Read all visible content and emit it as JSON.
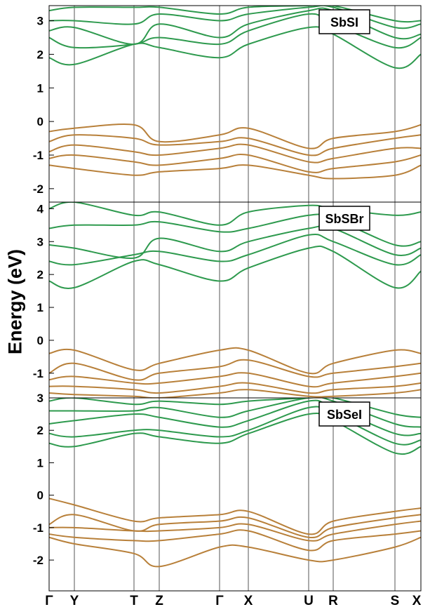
{
  "figure": {
    "ylabel": "Energy (eV)",
    "kpoints": [
      "Γ",
      "Y",
      "T",
      "Z",
      "Γ",
      "X",
      "U",
      "R",
      "S",
      "X"
    ],
    "colors": {
      "conduction": "#2e9a4e",
      "valence": "#b8803a",
      "axis": "#000000",
      "divider": "#555555"
    }
  },
  "chart_data": [
    {
      "type": "line",
      "title": "SbSI",
      "ylim": [
        -2.4,
        3.45
      ],
      "yticks": [
        3,
        2,
        1,
        0,
        -1,
        -2
      ],
      "x": [
        "Γ",
        "Y",
        "T",
        "Z",
        "Γ",
        "X",
        "U",
        "R",
        "S",
        "X"
      ],
      "series": [
        {
          "band": "conduction",
          "values": [
            1.9,
            1.7,
            2.3,
            2.2,
            1.9,
            2.3,
            2.8,
            2.6,
            1.6,
            2.0
          ]
        },
        {
          "band": "conduction",
          "values": [
            2.5,
            2.2,
            2.3,
            2.5,
            2.3,
            2.7,
            3.2,
            2.9,
            2.2,
            2.5
          ]
        },
        {
          "band": "conduction",
          "values": [
            2.7,
            2.8,
            2.3,
            2.9,
            2.5,
            2.9,
            3.3,
            3.3,
            2.5,
            2.6
          ]
        },
        {
          "band": "conduction",
          "values": [
            3.0,
            3.0,
            2.9,
            3.2,
            3.0,
            3.2,
            3.4,
            3.4,
            2.8,
            2.9
          ]
        },
        {
          "band": "conduction",
          "values": [
            3.3,
            3.4,
            3.4,
            3.4,
            3.2,
            3.4,
            3.45,
            3.45,
            3.0,
            3.0
          ]
        },
        {
          "band": "valence",
          "values": [
            -0.3,
            -0.2,
            -0.1,
            -0.6,
            -0.4,
            -0.2,
            -0.8,
            -0.5,
            -0.3,
            -0.1
          ]
        },
        {
          "band": "valence",
          "values": [
            -0.6,
            -0.4,
            -0.5,
            -0.7,
            -0.6,
            -0.5,
            -1.0,
            -0.8,
            -0.5,
            -0.4
          ]
        },
        {
          "band": "valence",
          "values": [
            -0.9,
            -0.7,
            -0.9,
            -1.0,
            -0.8,
            -0.7,
            -1.2,
            -1.1,
            -0.8,
            -0.8
          ]
        },
        {
          "band": "valence",
          "values": [
            -1.1,
            -1.0,
            -1.2,
            -1.3,
            -1.1,
            -1.0,
            -1.5,
            -1.4,
            -1.2,
            -1.0
          ]
        },
        {
          "band": "valence",
          "values": [
            -1.3,
            -1.4,
            -1.6,
            -1.5,
            -1.4,
            -1.3,
            -1.6,
            -1.7,
            -1.6,
            -1.3
          ]
        }
      ]
    },
    {
      "type": "line",
      "title": "SbSBr",
      "ylim": [
        -1.75,
        4.2
      ],
      "yticks": [
        4,
        3,
        2,
        1,
        0,
        -1
      ],
      "x": [
        "Γ",
        "Y",
        "T",
        "Z",
        "Γ",
        "X",
        "U",
        "R",
        "S",
        "X"
      ],
      "series": [
        {
          "band": "conduction",
          "values": [
            1.8,
            1.6,
            2.4,
            2.3,
            1.8,
            2.2,
            2.8,
            2.7,
            1.6,
            2.1
          ]
        },
        {
          "band": "conduction",
          "values": [
            2.4,
            2.3,
            2.6,
            2.7,
            2.4,
            2.6,
            3.2,
            3.0,
            2.3,
            2.6
          ]
        },
        {
          "band": "conduction",
          "values": [
            2.9,
            2.8,
            2.5,
            3.1,
            2.7,
            3.0,
            3.4,
            3.4,
            2.6,
            2.8
          ]
        },
        {
          "band": "conduction",
          "values": [
            3.4,
            3.5,
            3.5,
            3.6,
            3.3,
            3.4,
            3.8,
            3.7,
            2.9,
            3.0
          ]
        },
        {
          "band": "conduction",
          "values": [
            4.0,
            4.2,
            3.8,
            3.9,
            3.5,
            3.9,
            4.1,
            4.0,
            3.8,
            3.9
          ]
        },
        {
          "band": "valence",
          "values": [
            -0.4,
            -0.3,
            -0.9,
            -0.7,
            -0.3,
            -0.3,
            -1.0,
            -0.7,
            -0.3,
            -0.4
          ]
        },
        {
          "band": "valence",
          "values": [
            -1.0,
            -0.7,
            -1.2,
            -1.0,
            -0.8,
            -0.6,
            -1.1,
            -1.0,
            -0.8,
            -0.7
          ]
        },
        {
          "band": "valence",
          "values": [
            -1.2,
            -1.1,
            -1.3,
            -1.3,
            -1.1,
            -1.0,
            -1.4,
            -1.3,
            -1.1,
            -1.0
          ]
        },
        {
          "band": "valence",
          "values": [
            -1.4,
            -1.4,
            -1.5,
            -1.6,
            -1.4,
            -1.3,
            -1.6,
            -1.5,
            -1.4,
            -1.3
          ]
        },
        {
          "band": "valence",
          "values": [
            -1.6,
            -1.65,
            -1.7,
            -1.75,
            -1.6,
            -1.5,
            -1.7,
            -1.7,
            -1.6,
            -1.5
          ]
        }
      ]
    },
    {
      "type": "line",
      "title": "SbSeI",
      "ylim": [
        -2.95,
        3.0
      ],
      "yticks": [
        3,
        2,
        1,
        0,
        -1,
        -2
      ],
      "x": [
        "Γ",
        "Y",
        "T",
        "Z",
        "Γ",
        "X",
        "U",
        "R",
        "S",
        "X"
      ],
      "series": [
        {
          "band": "conduction",
          "values": [
            1.6,
            1.5,
            1.9,
            1.8,
            1.6,
            1.9,
            2.5,
            2.3,
            1.3,
            1.5
          ]
        },
        {
          "band": "conduction",
          "values": [
            1.9,
            1.8,
            2.0,
            2.0,
            1.8,
            2.0,
            2.7,
            2.5,
            1.6,
            1.7
          ]
        },
        {
          "band": "conduction",
          "values": [
            2.2,
            2.3,
            2.5,
            2.4,
            2.1,
            2.3,
            2.9,
            2.7,
            1.9,
            1.9
          ]
        },
        {
          "band": "conduction",
          "values": [
            2.6,
            2.6,
            2.6,
            2.7,
            2.4,
            2.6,
            3.0,
            2.9,
            2.2,
            2.1
          ]
        },
        {
          "band": "conduction",
          "values": [
            2.9,
            3.0,
            2.8,
            2.9,
            2.8,
            2.9,
            3.0,
            3.0,
            2.5,
            2.4
          ]
        },
        {
          "band": "valence",
          "values": [
            -0.1,
            -0.3,
            -0.8,
            -0.7,
            -0.6,
            -0.5,
            -1.2,
            -0.8,
            -0.5,
            -0.4
          ]
        },
        {
          "band": "valence",
          "values": [
            -0.9,
            -0.6,
            -1.1,
            -0.9,
            -0.8,
            -0.7,
            -1.3,
            -1.0,
            -0.7,
            -0.6
          ]
        },
        {
          "band": "valence",
          "values": [
            -1.0,
            -1.0,
            -1.1,
            -1.1,
            -1.0,
            -0.9,
            -1.4,
            -1.2,
            -0.9,
            -0.8
          ]
        },
        {
          "band": "valence",
          "values": [
            -1.2,
            -1.3,
            -1.4,
            -1.4,
            -1.2,
            -1.1,
            -1.7,
            -1.4,
            -1.2,
            -1.1
          ]
        },
        {
          "band": "valence",
          "values": [
            -1.3,
            -1.5,
            -1.8,
            -2.2,
            -1.6,
            -1.6,
            -2.0,
            -2.0,
            -1.6,
            -1.3
          ]
        }
      ]
    }
  ]
}
